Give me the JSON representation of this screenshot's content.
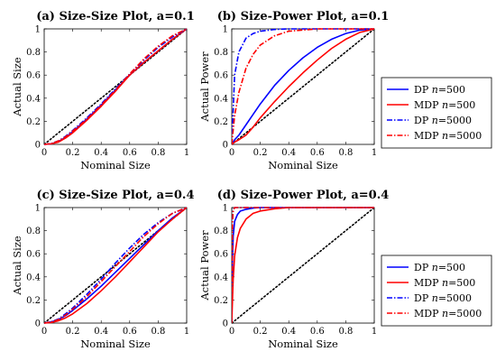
{
  "legend": {
    "entries": [
      {
        "method": "DP",
        "n_symbol": "n",
        "n_value": "=500",
        "color": "#0000ff",
        "dash": "solid"
      },
      {
        "method": "MDP",
        "n_symbol": "n",
        "n_value": "=500",
        "color": "#ff0000",
        "dash": "solid"
      },
      {
        "method": "DP",
        "n_symbol": "n",
        "n_value": "=5000",
        "color": "#0000ff",
        "dash": "dashdot"
      },
      {
        "method": "MDP",
        "n_symbol": "n",
        "n_value": "=5000",
        "color": "#ff0000",
        "dash": "dashdot"
      }
    ]
  },
  "chart_data": [
    {
      "type": "line",
      "title": "(a) Size-Size Plot, a=0.1",
      "xlabel": "Nominal Size",
      "ylabel": "Actual Size",
      "xlim": [
        0,
        1
      ],
      "ylim": [
        0,
        1
      ],
      "xticks": [
        "0",
        "0.2",
        "0.4",
        "0.6",
        "0.8",
        "1"
      ],
      "yticks": [
        "0",
        "0.2",
        "0.4",
        "0.6",
        "0.8",
        "1"
      ],
      "x": [
        0,
        0.05,
        0.1,
        0.15,
        0.2,
        0.3,
        0.4,
        0.5,
        0.6,
        0.7,
        0.8,
        0.9,
        1
      ],
      "reference": "diagonal",
      "series": [
        {
          "values": [
            0,
            0.005,
            0.025,
            0.06,
            0.11,
            0.22,
            0.34,
            0.47,
            0.6,
            0.71,
            0.81,
            0.91,
            1
          ]
        },
        {
          "values": [
            0,
            0.005,
            0.02,
            0.055,
            0.1,
            0.21,
            0.33,
            0.46,
            0.6,
            0.71,
            0.81,
            0.91,
            1
          ]
        },
        {
          "values": [
            0,
            0.008,
            0.03,
            0.07,
            0.12,
            0.23,
            0.35,
            0.48,
            0.61,
            0.73,
            0.84,
            0.93,
            1
          ]
        },
        {
          "values": [
            0,
            0.007,
            0.03,
            0.065,
            0.115,
            0.22,
            0.34,
            0.47,
            0.61,
            0.74,
            0.85,
            0.94,
            1
          ]
        }
      ]
    },
    {
      "type": "line",
      "title": "(b) Size-Power Plot, a=0.1",
      "xlabel": "Nominal Size",
      "ylabel": "Actual Power",
      "xlim": [
        0,
        1
      ],
      "ylim": [
        0,
        1
      ],
      "xticks": [
        "0",
        "0.2",
        "0.4",
        "0.6",
        "0.8",
        "1"
      ],
      "yticks": [
        "0",
        "0.2",
        "0.4",
        "0.6",
        "0.8",
        "1"
      ],
      "x": [
        0,
        0.02,
        0.05,
        0.1,
        0.15,
        0.2,
        0.3,
        0.4,
        0.5,
        0.6,
        0.7,
        0.8,
        0.9,
        1
      ],
      "reference": "diagonal",
      "series": [
        {
          "values": [
            0,
            0.04,
            0.08,
            0.17,
            0.26,
            0.35,
            0.51,
            0.64,
            0.75,
            0.84,
            0.91,
            0.96,
            0.99,
            1
          ]
        },
        {
          "values": [
            0,
            0.02,
            0.04,
            0.08,
            0.15,
            0.23,
            0.37,
            0.5,
            0.62,
            0.73,
            0.83,
            0.91,
            0.97,
            1
          ]
        },
        {
          "values": [
            0,
            0.6,
            0.8,
            0.92,
            0.96,
            0.98,
            0.995,
            1,
            1,
            1,
            1,
            1,
            1,
            1
          ]
        },
        {
          "values": [
            0,
            0.25,
            0.45,
            0.66,
            0.78,
            0.86,
            0.94,
            0.98,
            0.99,
            1,
            1,
            1,
            1,
            1
          ]
        }
      ]
    },
    {
      "type": "line",
      "title": "(c) Size-Size Plot, a=0.4",
      "xlabel": "Nominal Size",
      "ylabel": "Actual Size",
      "xlim": [
        0,
        1
      ],
      "ylim": [
        0,
        1
      ],
      "xticks": [
        "0",
        "0.2",
        "0.4",
        "0.6",
        "0.8",
        "1"
      ],
      "yticks": [
        "0",
        "0.2",
        "0.4",
        "0.6",
        "0.8",
        "1"
      ],
      "x": [
        0,
        0.05,
        0.1,
        0.15,
        0.2,
        0.3,
        0.4,
        0.5,
        0.6,
        0.7,
        0.8,
        0.9,
        1
      ],
      "reference": "diagonal",
      "series": [
        {
          "values": [
            0,
            0.01,
            0.03,
            0.065,
            0.11,
            0.21,
            0.32,
            0.44,
            0.56,
            0.68,
            0.8,
            0.91,
            1
          ]
        },
        {
          "values": [
            0,
            0.005,
            0.02,
            0.045,
            0.08,
            0.17,
            0.28,
            0.4,
            0.53,
            0.66,
            0.79,
            0.9,
            1
          ]
        },
        {
          "values": [
            0,
            0.012,
            0.035,
            0.08,
            0.13,
            0.25,
            0.38,
            0.52,
            0.65,
            0.77,
            0.87,
            0.95,
            1
          ]
        },
        {
          "values": [
            0,
            0.01,
            0.03,
            0.07,
            0.12,
            0.23,
            0.36,
            0.49,
            0.62,
            0.75,
            0.86,
            0.95,
            1
          ]
        }
      ]
    },
    {
      "type": "line",
      "title": "(d) Size-Power Plot, a=0.4",
      "xlabel": "Nominal Size",
      "ylabel": "Actual Power",
      "xlim": [
        0,
        1
      ],
      "ylim": [
        0,
        1
      ],
      "xticks": [
        "0",
        "0.2",
        "0.4",
        "0.6",
        "0.8",
        "1"
      ],
      "yticks": [
        "0",
        "0.2",
        "0.4",
        "0.6",
        "0.8",
        "1"
      ],
      "x": [
        0,
        0.005,
        0.01,
        0.02,
        0.04,
        0.06,
        0.1,
        0.15,
        0.2,
        0.3,
        0.4,
        0.6,
        0.8,
        1
      ],
      "reference": "diagonal",
      "series": [
        {
          "values": [
            0,
            0.55,
            0.75,
            0.88,
            0.94,
            0.97,
            0.985,
            0.995,
            1,
            1,
            1,
            1,
            1,
            1
          ]
        },
        {
          "values": [
            0,
            0.2,
            0.38,
            0.58,
            0.74,
            0.82,
            0.9,
            0.95,
            0.97,
            0.99,
            1,
            1,
            1,
            1
          ]
        },
        {
          "values": [
            0,
            0.9,
            0.98,
            1,
            1,
            1,
            1,
            1,
            1,
            1,
            1,
            1,
            1,
            1
          ]
        },
        {
          "values": [
            0,
            0.88,
            0.97,
            1,
            1,
            1,
            1,
            1,
            1,
            1,
            1,
            1,
            1,
            1
          ]
        }
      ]
    }
  ]
}
